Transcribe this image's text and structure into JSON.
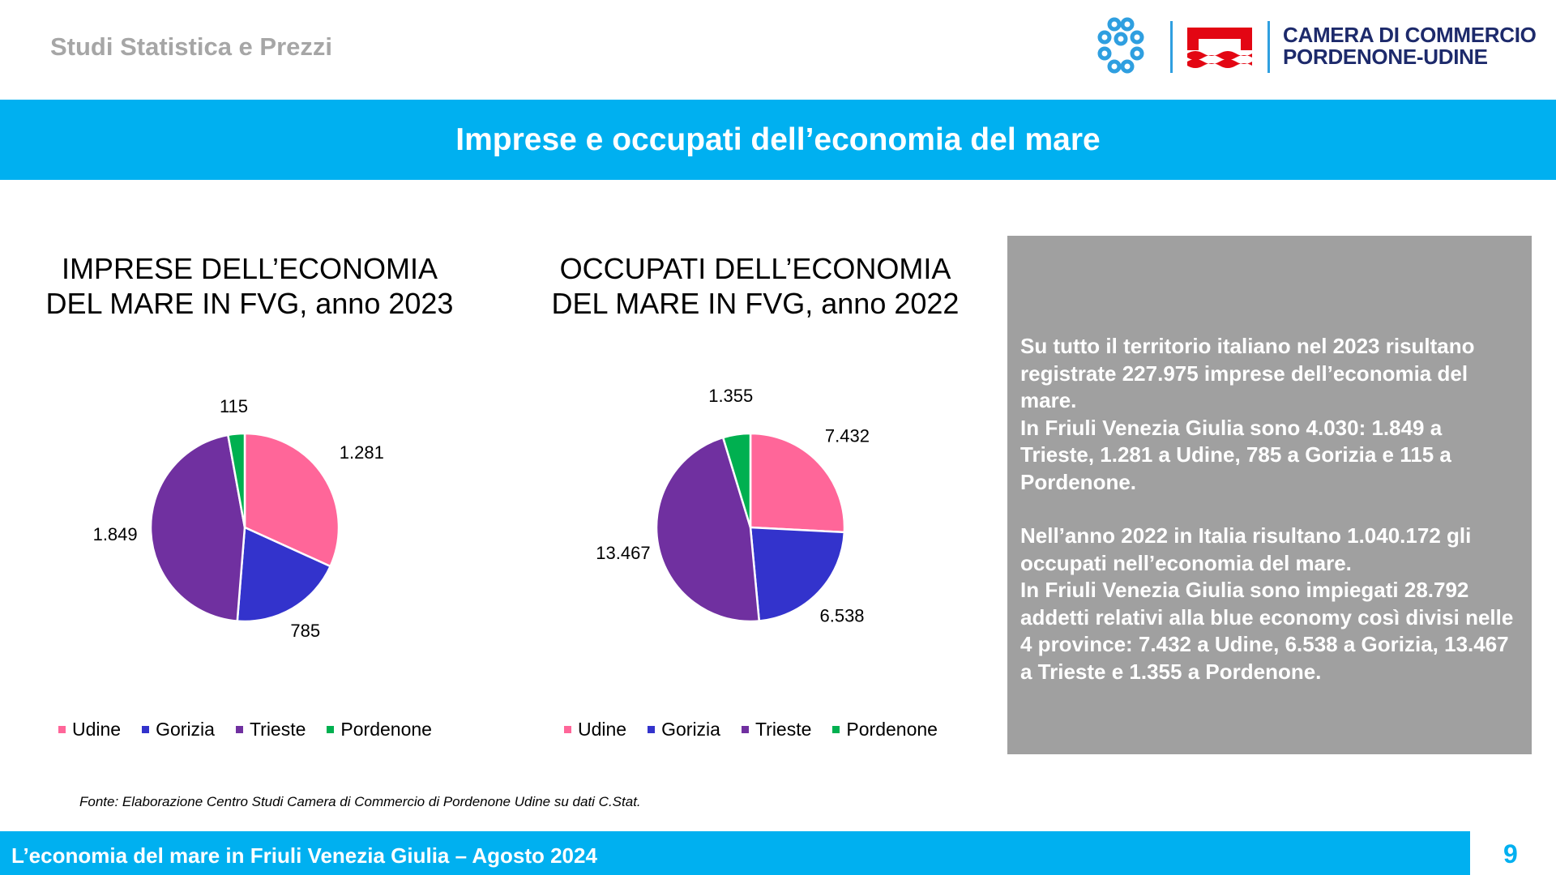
{
  "header": {
    "left_text": "Studi Statistica e Prezzi",
    "org_line1": "CAMERA DI COMMERCIO",
    "org_line2": "PORDENONE-UDINE"
  },
  "title": "Imprese e occupati dell’economia del mare",
  "colors": {
    "accent": "#00b0f0",
    "Udine": "#ff6699",
    "Gorizia": "#3333cc",
    "Trieste": "#7030a0",
    "Pordenone": "#00b050"
  },
  "chart_data": [
    {
      "type": "pie",
      "title_line1": "IMPRESE DELL’ECONOMIA",
      "title_line2": "DEL MARE IN FVG, anno 2023",
      "categories": [
        "Udine",
        "Gorizia",
        "Trieste",
        "Pordenone"
      ],
      "values": [
        1281,
        785,
        1849,
        115
      ],
      "labels": [
        "1.281",
        "785",
        "1.849",
        "115"
      ],
      "legend_position": "bottom"
    },
    {
      "type": "pie",
      "title_line1": "OCCUPATI DELL’ECONOMIA",
      "title_line2": "DEL MARE IN FVG, anno 2022",
      "categories": [
        "Udine",
        "Gorizia",
        "Trieste",
        "Pordenone"
      ],
      "values": [
        7432,
        6538,
        13467,
        1355
      ],
      "labels": [
        "7.432",
        "6.538",
        "13.467",
        "1.355"
      ],
      "legend_position": "bottom"
    }
  ],
  "info": {
    "p1": "Su tutto il territorio italiano nel 2023 risultano registrate 227.975 imprese dell’economia del mare.",
    "p2": "In Friuli Venezia Giulia sono 4.030: 1.849 a Trieste, 1.281 a Udine, 785 a Gorizia e 115 a Pordenone.",
    "p3": "Nell’anno 2022 in Italia risultano 1.040.172 gli occupati nell’economia del mare.",
    "p4": "In Friuli Venezia Giulia sono impiegati 28.792 addetti relativi alla blue economy così divisi nelle 4 province: 7.432 a Udine, 6.538 a Gorizia, 13.467 a Trieste e 1.355 a Pordenone."
  },
  "source": "Fonte: Elaborazione Centro Studi Camera di Commercio di Pordenone Udine su dati C.Stat.",
  "footer": {
    "text": "L’economia del mare in Friuli Venezia Giulia – Agosto 2024",
    "page": "9"
  }
}
